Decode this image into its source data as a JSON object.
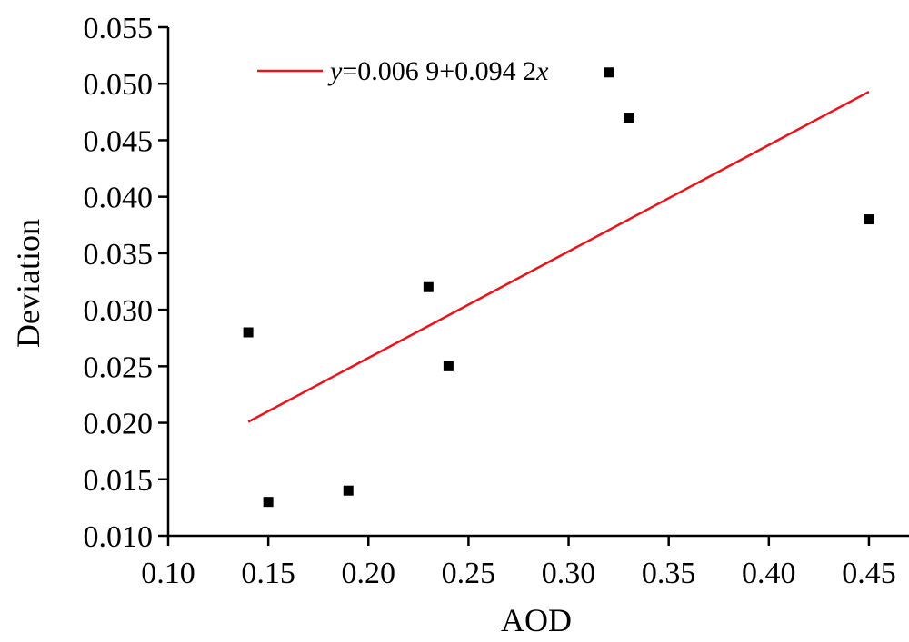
{
  "chart_data": {
    "type": "scatter",
    "xlabel": "AOD",
    "ylabel": "Deviation",
    "xlim": [
      0.1,
      0.47
    ],
    "ylim": [
      0.01,
      0.055
    ],
    "x_ticks": [
      "0.10",
      "0.15",
      "0.20",
      "0.25",
      "0.30",
      "0.35",
      "0.40",
      "0.45"
    ],
    "y_ticks": [
      "0.010",
      "0.015",
      "0.020",
      "0.025",
      "0.030",
      "0.035",
      "0.040",
      "0.045",
      "0.050",
      "0.055"
    ],
    "grid": false,
    "legend_position": "top-left",
    "points": [
      {
        "x": 0.14,
        "y": 0.028
      },
      {
        "x": 0.15,
        "y": 0.013
      },
      {
        "x": 0.19,
        "y": 0.014
      },
      {
        "x": 0.23,
        "y": 0.032
      },
      {
        "x": 0.24,
        "y": 0.025
      },
      {
        "x": 0.32,
        "y": 0.051
      },
      {
        "x": 0.33,
        "y": 0.047
      },
      {
        "x": 0.45,
        "y": 0.038
      }
    ],
    "fit_line": {
      "intercept": 0.0069,
      "slope": 0.0942,
      "x_range": [
        0.14,
        0.45
      ],
      "color": "#e8141c"
    },
    "legend": {
      "var_y": "y",
      "equation": "=0.006 9+0.094 2",
      "var_x": "x"
    },
    "marker_color": "#000000"
  }
}
